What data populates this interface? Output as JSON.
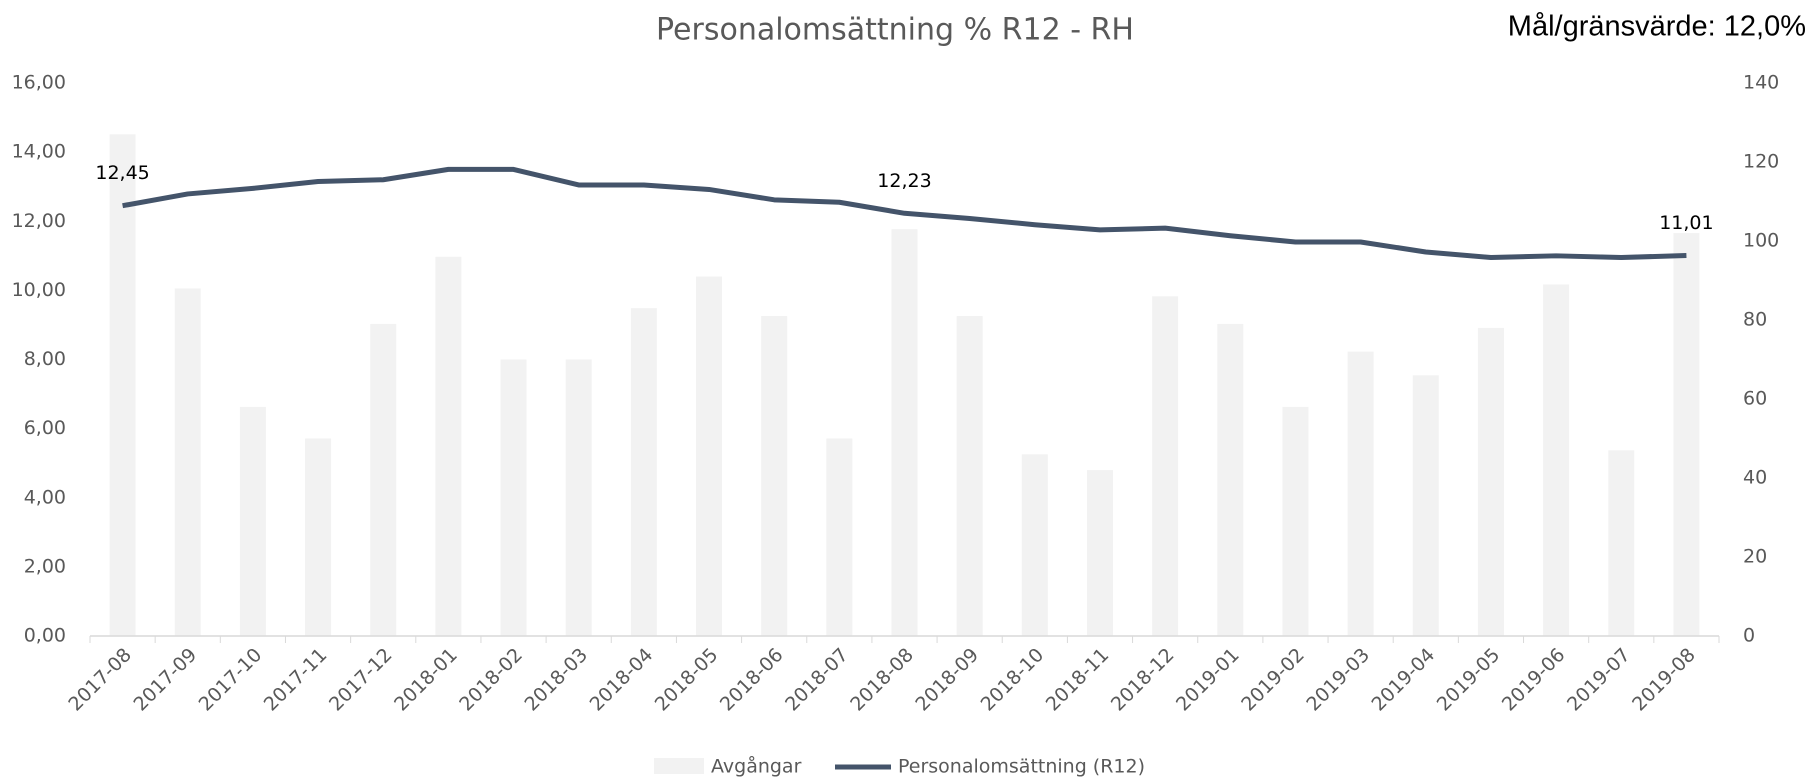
{
  "chart_data": {
    "type": "bar-line",
    "title": "Personalomsättning % R12 - RH",
    "annotation": "Mål/gränsvärde: 12,0%",
    "categories": [
      "2017-08",
      "2017-09",
      "2017-10",
      "2017-11",
      "2017-12",
      "2018-01",
      "2018-02",
      "2018-03",
      "2018-04",
      "2018-05",
      "2018-06",
      "2018-07",
      "2018-08",
      "2018-09",
      "2018-10",
      "2018-11",
      "2018-12",
      "2019-01",
      "2019-02",
      "2019-03",
      "2019-04",
      "2019-05",
      "2019-06",
      "2019-07",
      "2019-08"
    ],
    "series": [
      {
        "name": "Avgångar",
        "type": "bar",
        "axis": "y2",
        "color": "#f2f2f2",
        "values": [
          127,
          88,
          58,
          50,
          79,
          96,
          70,
          70,
          83,
          91,
          81,
          50,
          103,
          81,
          46,
          42,
          86,
          79,
          58,
          72,
          66,
          78,
          89,
          47,
          102
        ]
      },
      {
        "name": "Personalomsättning (R12)",
        "type": "line",
        "axis": "y",
        "color": "#44546a",
        "values": [
          12.45,
          12.79,
          12.95,
          13.15,
          13.2,
          13.5,
          13.5,
          13.05,
          13.05,
          12.92,
          12.62,
          12.55,
          12.23,
          12.08,
          11.9,
          11.75,
          11.8,
          11.58,
          11.4,
          11.4,
          11.11,
          10.95,
          11.0,
          10.95,
          11.01
        ],
        "value_labels": [
          "12,45",
          null,
          null,
          null,
          null,
          null,
          null,
          null,
          null,
          null,
          null,
          null,
          "12,23",
          null,
          null,
          null,
          null,
          null,
          null,
          null,
          null,
          null,
          null,
          null,
          "11,01"
        ]
      }
    ],
    "ylim": [
      0,
      16
    ],
    "yticks": [
      {
        "value": 0,
        "label": "0,00"
      },
      {
        "value": 2,
        "label": "2,00"
      },
      {
        "value": 4,
        "label": "4,00"
      },
      {
        "value": 6,
        "label": "6,00"
      },
      {
        "value": 8,
        "label": "8,00"
      },
      {
        "value": 10,
        "label": "10,00"
      },
      {
        "value": 12,
        "label": "12,00"
      },
      {
        "value": 14,
        "label": "14,00"
      },
      {
        "value": 16,
        "label": "16,00"
      }
    ],
    "y2lim": [
      0,
      140
    ],
    "y2ticks": [
      0,
      20,
      40,
      60,
      80,
      100,
      120,
      140
    ],
    "grid": false,
    "legend": "bottom"
  }
}
